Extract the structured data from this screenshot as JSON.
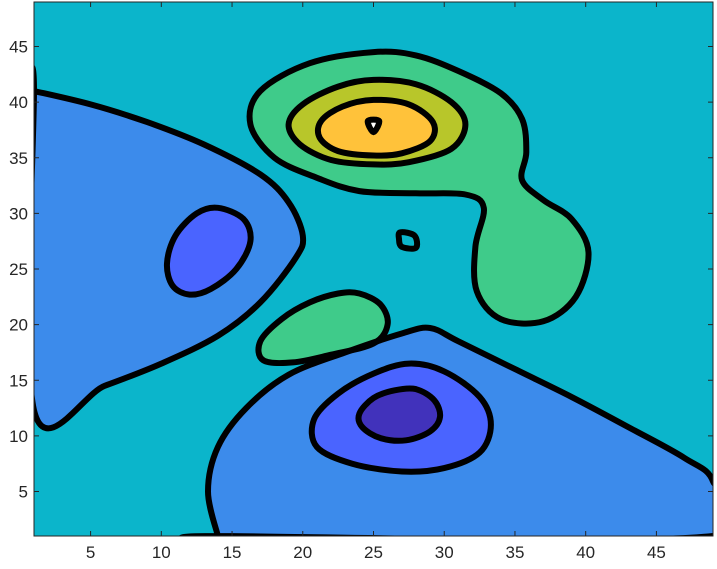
{
  "chart_data": {
    "type": "contourf",
    "title": "",
    "xlabel": "",
    "ylabel": "",
    "xlim": [
      1,
      49
    ],
    "ylim": [
      1,
      49
    ],
    "xticks": [
      5,
      10,
      15,
      20,
      25,
      30,
      35,
      40,
      45
    ],
    "yticks": [
      5,
      10,
      15,
      20,
      25,
      30,
      35,
      40,
      45
    ],
    "grid": false,
    "colormap": "parula",
    "background_level_color": "#0BB5CB",
    "regions": [
      {
        "name": "lower-left-blue-region",
        "color": "#3C8BEB",
        "points": [
          [
            1,
            41
          ],
          [
            5,
            39.8
          ],
          [
            9,
            38.2
          ],
          [
            13,
            36.2
          ],
          [
            17,
            33.5
          ],
          [
            19,
            31
          ],
          [
            20,
            28
          ],
          [
            19.5,
            26
          ],
          [
            17,
            22
          ],
          [
            14,
            19
          ],
          [
            10,
            16.5
          ],
          [
            6,
            14.5
          ],
          [
            1,
            12.3
          ],
          [
            1,
            41
          ]
        ]
      },
      {
        "name": "bottom-blue-region",
        "color": "#3C8BEB",
        "points": [
          [
            14,
            1
          ],
          [
            13.3,
            5
          ],
          [
            14,
            9
          ],
          [
            16,
            12.5
          ],
          [
            19,
            15.5
          ],
          [
            23,
            17.5
          ],
          [
            27,
            19.2
          ],
          [
            29,
            19.7
          ],
          [
            31,
            18.5
          ],
          [
            35,
            16
          ],
          [
            39,
            13.5
          ],
          [
            43,
            10.8
          ],
          [
            47,
            8
          ],
          [
            49,
            5.9
          ],
          [
            49,
            1
          ],
          [
            14,
            1
          ]
        ]
      },
      {
        "name": "center-green-region",
        "color": "#3FCB8A",
        "points": [
          [
            22.5,
            22.8
          ],
          [
            24,
            22.8
          ],
          [
            25.5,
            21.8
          ],
          [
            26,
            20
          ],
          [
            25,
            18.3
          ],
          [
            22,
            17.3
          ],
          [
            19.3,
            16.6
          ],
          [
            17.2,
            16.8
          ],
          [
            17,
            18.5
          ],
          [
            18.5,
            20.5
          ],
          [
            20.5,
            22
          ]
        ]
      },
      {
        "name": "upper-green-region",
        "color": "#3FCB8A",
        "points": [
          [
            25,
            44.5
          ],
          [
            28,
            44.2
          ],
          [
            31,
            42.8
          ],
          [
            34,
            40.8
          ],
          [
            35.5,
            38.5
          ],
          [
            35.8,
            35.5
          ],
          [
            35.5,
            33
          ],
          [
            37,
            31.2
          ],
          [
            39,
            29.5
          ],
          [
            40.2,
            26.5
          ],
          [
            39.3,
            22.5
          ],
          [
            37,
            20.3
          ],
          [
            34,
            20.5
          ],
          [
            32.3,
            23
          ],
          [
            32.2,
            27
          ],
          [
            32.8,
            30.5
          ],
          [
            31.5,
            31.7
          ],
          [
            28,
            31.8
          ],
          [
            24,
            32
          ],
          [
            21,
            33.2
          ],
          [
            18,
            35
          ],
          [
            16.3,
            38
          ],
          [
            17,
            41
          ],
          [
            20.5,
            43.5
          ]
        ]
      },
      {
        "name": "upper-olive-region",
        "color": "#B8C62A",
        "points": [
          [
            25,
            42
          ],
          [
            28,
            41.6
          ],
          [
            30.5,
            40
          ],
          [
            31.5,
            38
          ],
          [
            30.5,
            35.8
          ],
          [
            27.5,
            34.6
          ],
          [
            25,
            34.4
          ],
          [
            22,
            34.8
          ],
          [
            19.8,
            36.2
          ],
          [
            19,
            38
          ],
          [
            20,
            39.8
          ],
          [
            22.5,
            41.4
          ]
        ]
      },
      {
        "name": "peak-yellow-region",
        "color": "#FFC23A",
        "points": [
          [
            25,
            40.2
          ],
          [
            27.5,
            39.8
          ],
          [
            29.2,
            38.2
          ],
          [
            29,
            36.5
          ],
          [
            27,
            35.4
          ],
          [
            25,
            35.2
          ],
          [
            22.5,
            35.6
          ],
          [
            21.2,
            36.8
          ],
          [
            21.3,
            38.3
          ],
          [
            22.8,
            39.6
          ]
        ]
      },
      {
        "name": "left-medium-blue-region",
        "color": "#4A64FF",
        "points": [
          [
            14,
            30.5
          ],
          [
            15.8,
            29.5
          ],
          [
            16.3,
            27.5
          ],
          [
            15.3,
            25
          ],
          [
            13.5,
            23.2
          ],
          [
            12,
            22.7
          ],
          [
            10.8,
            23.5
          ],
          [
            10.4,
            25.5
          ],
          [
            11,
            28
          ],
          [
            12.5,
            30
          ]
        ]
      },
      {
        "name": "bottom-medium-blue-region",
        "color": "#4A64FF",
        "points": [
          [
            27.5,
            16.5
          ],
          [
            30,
            15.8
          ],
          [
            32.5,
            13.5
          ],
          [
            33.3,
            11
          ],
          [
            32.5,
            8.5
          ],
          [
            30,
            7.1
          ],
          [
            27,
            6.8
          ],
          [
            23.5,
            7.5
          ],
          [
            21,
            9
          ],
          [
            20.8,
            11.5
          ],
          [
            22.5,
            13.8
          ],
          [
            25,
            15.6
          ]
        ]
      },
      {
        "name": "trough-indigo-region",
        "color": "#4132BB",
        "points": [
          [
            28,
            14.2
          ],
          [
            29.3,
            13.2
          ],
          [
            29.7,
            11.7
          ],
          [
            29,
            10.4
          ],
          [
            27.3,
            9.6
          ],
          [
            25.5,
            9.8
          ],
          [
            24.2,
            10.8
          ],
          [
            24,
            12
          ],
          [
            25,
            13.4
          ],
          [
            26.5,
            14.1
          ]
        ]
      },
      {
        "name": "small-peak-region",
        "color": "#FFFFFF",
        "points": [
          [
            24.6,
            38.3
          ],
          [
            25.4,
            38.3
          ],
          [
            25,
            37.3
          ]
        ]
      },
      {
        "name": "small-center-region",
        "color": "#0BB5CB",
        "points": [
          [
            26.9,
            28.3
          ],
          [
            27.9,
            28
          ],
          [
            28,
            26.9
          ],
          [
            27,
            27
          ],
          [
            26.8,
            27.7
          ]
        ]
      }
    ]
  }
}
